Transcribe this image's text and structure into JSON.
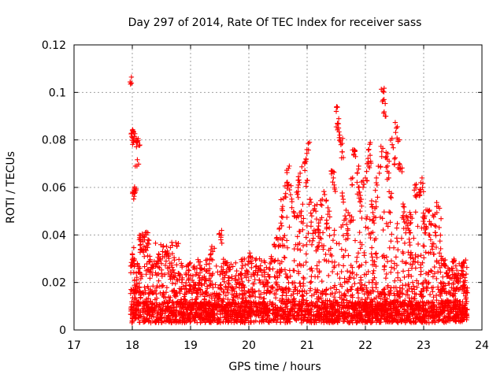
{
  "chart_data": {
    "type": "scatter",
    "title": "Day 297 of 2014, Rate Of TEC Index for receiver sass",
    "xlabel": "GPS time / hours",
    "ylabel": "ROTI / TECUs",
    "xlim": [
      17,
      24
    ],
    "ylim": [
      0,
      0.12
    ],
    "xticks": [
      17,
      18,
      19,
      20,
      21,
      22,
      23,
      24
    ],
    "xtick_labels": [
      "17",
      "18",
      "19",
      "20",
      "21",
      "22",
      "23",
      "24"
    ],
    "yticks": [
      0,
      0.02,
      0.04,
      0.06,
      0.08,
      0.1,
      0.12
    ],
    "ytick_labels": [
      "0",
      "0.02",
      "0.04",
      "0.06",
      "0.08",
      "0.1",
      "0.12"
    ],
    "grid": true,
    "marker": "+",
    "color": "#ff0000",
    "series": [
      {
        "name": "ROTI",
        "points": [
          [
            17.97,
            0.1035
          ],
          [
            17.98,
            0.0825
          ],
          [
            18.0,
            0.081
          ],
          [
            18.02,
            0.0835
          ],
          [
            18.03,
            0.08
          ],
          [
            18.06,
            0.0795
          ],
          [
            18.09,
            0.079
          ],
          [
            18.1,
            0.0805
          ],
          [
            18.08,
            0.069
          ],
          [
            18.03,
            0.059
          ],
          [
            18.05,
            0.058
          ],
          [
            18.04,
            0.0575
          ],
          [
            18.0,
            0.032
          ],
          [
            18.02,
            0.029
          ],
          [
            18.12,
            0.038
          ],
          [
            18.14,
            0.036
          ],
          [
            18.16,
            0.034
          ],
          [
            18.18,
            0.039
          ],
          [
            18.2,
            0.035
          ],
          [
            18.24,
            0.04
          ],
          [
            18.27,
            0.038
          ],
          [
            18.3,
            0.031
          ],
          [
            18.35,
            0.026
          ],
          [
            18.42,
            0.028
          ],
          [
            18.48,
            0.03
          ],
          [
            18.52,
            0.033
          ],
          [
            18.58,
            0.029
          ],
          [
            18.62,
            0.031
          ],
          [
            18.68,
            0.024
          ],
          [
            18.72,
            0.022
          ],
          [
            18.85,
            0.02
          ],
          [
            18.9,
            0.015
          ],
          [
            19.05,
            0.018
          ],
          [
            19.12,
            0.014
          ],
          [
            19.25,
            0.021
          ],
          [
            19.3,
            0.025
          ],
          [
            19.35,
            0.032
          ],
          [
            19.38,
            0.033
          ],
          [
            19.5,
            0.0405
          ],
          [
            19.52,
            0.039
          ],
          [
            19.6,
            0.028
          ],
          [
            19.65,
            0.026
          ],
          [
            19.8,
            0.02
          ],
          [
            19.9,
            0.019
          ],
          [
            20.02,
            0.031
          ],
          [
            20.05,
            0.028
          ],
          [
            20.12,
            0.025
          ],
          [
            20.2,
            0.027
          ],
          [
            20.3,
            0.021
          ],
          [
            20.38,
            0.03
          ],
          [
            20.45,
            0.035
          ],
          [
            20.5,
            0.038
          ],
          [
            20.55,
            0.045
          ],
          [
            20.58,
            0.052
          ],
          [
            20.62,
            0.056
          ],
          [
            20.65,
            0.062
          ],
          [
            20.68,
            0.068
          ],
          [
            20.7,
            0.059
          ],
          [
            20.74,
            0.054
          ],
          [
            20.78,
            0.048
          ],
          [
            20.82,
            0.058
          ],
          [
            20.85,
            0.061
          ],
          [
            20.88,
            0.066
          ],
          [
            20.9,
            0.05
          ],
          [
            20.93,
            0.045
          ],
          [
            20.96,
            0.07
          ],
          [
            20.98,
            0.072
          ],
          [
            21.0,
            0.063
          ],
          [
            21.02,
            0.0785
          ],
          [
            21.05,
            0.055
          ],
          [
            21.08,
            0.048
          ],
          [
            21.12,
            0.042
          ],
          [
            21.15,
            0.05
          ],
          [
            21.18,
            0.034
          ],
          [
            21.22,
            0.041
          ],
          [
            21.26,
            0.055
          ],
          [
            21.3,
            0.057
          ],
          [
            21.34,
            0.045
          ],
          [
            21.38,
            0.05
          ],
          [
            21.42,
            0.067
          ],
          [
            21.45,
            0.064
          ],
          [
            21.47,
            0.06
          ],
          [
            21.5,
            0.092
          ],
          [
            21.52,
            0.087
          ],
          [
            21.54,
            0.085
          ],
          [
            21.56,
            0.082
          ],
          [
            21.58,
            0.078
          ],
          [
            21.6,
            0.075
          ],
          [
            21.62,
            0.055
          ],
          [
            21.65,
            0.048
          ],
          [
            21.7,
            0.042
          ],
          [
            21.74,
            0.046
          ],
          [
            21.78,
            0.064
          ],
          [
            21.8,
            0.074
          ],
          [
            21.83,
            0.073
          ],
          [
            21.86,
            0.066
          ],
          [
            21.88,
            0.06
          ],
          [
            21.9,
            0.058
          ],
          [
            21.93,
            0.055
          ],
          [
            21.96,
            0.06
          ],
          [
            22.0,
            0.064
          ],
          [
            22.03,
            0.07
          ],
          [
            22.06,
            0.076
          ],
          [
            22.09,
            0.071
          ],
          [
            22.12,
            0.052
          ],
          [
            22.15,
            0.045
          ],
          [
            22.18,
            0.054
          ],
          [
            22.2,
            0.061
          ],
          [
            22.24,
            0.066
          ],
          [
            22.28,
            0.075
          ],
          [
            22.3,
            0.1005
          ],
          [
            22.32,
            0.097
          ],
          [
            22.34,
            0.09
          ],
          [
            22.36,
            0.073
          ],
          [
            22.38,
            0.069
          ],
          [
            22.4,
            0.064
          ],
          [
            22.43,
            0.056
          ],
          [
            22.46,
            0.078
          ],
          [
            22.5,
            0.072
          ],
          [
            22.53,
            0.085
          ],
          [
            22.56,
            0.08
          ],
          [
            22.58,
            0.07
          ],
          [
            22.6,
            0.068
          ],
          [
            22.65,
            0.052
          ],
          [
            22.7,
            0.045
          ],
          [
            22.75,
            0.042
          ],
          [
            22.8,
            0.047
          ],
          [
            22.85,
            0.061
          ],
          [
            22.88,
            0.057
          ],
          [
            22.92,
            0.058
          ],
          [
            22.95,
            0.062
          ],
          [
            22.98,
            0.06
          ],
          [
            23.02,
            0.048
          ],
          [
            23.05,
            0.043
          ],
          [
            23.08,
            0.05
          ],
          [
            23.12,
            0.038
          ],
          [
            23.15,
            0.034
          ],
          [
            23.2,
            0.041
          ],
          [
            23.25,
            0.052
          ],
          [
            23.3,
            0.031
          ],
          [
            23.35,
            0.028
          ],
          [
            23.4,
            0.024
          ],
          [
            23.45,
            0.022
          ],
          [
            23.5,
            0.026
          ],
          [
            23.55,
            0.023
          ],
          [
            23.6,
            0.021
          ],
          [
            23.65,
            0.025
          ],
          [
            23.7,
            0.019
          ],
          [
            23.73,
            0.016
          ]
        ],
        "baseline_band": {
          "x_range": [
            17.97,
            23.75
          ],
          "values": [
            0.003,
            0.018
          ],
          "description": "dense cluster of many points between roughly 0.003 and 0.02"
        }
      }
    ]
  }
}
